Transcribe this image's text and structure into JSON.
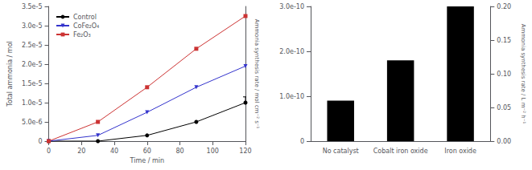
{
  "chart_data": [
    {
      "type": "line",
      "xlabel": "Time / min",
      "ylabel": "Total ammonia / mol",
      "y2label": "Ammonia synthesis rate / mol cm⁻² s⁻¹",
      "xlim": [
        0,
        120
      ],
      "ylim": [
        0,
        3.5e-05
      ],
      "xticks": [
        0,
        20,
        40,
        60,
        80,
        100,
        120
      ],
      "yticks": [
        0,
        {
          "value": 5e-06,
          "label": "5.0e-6"
        },
        {
          "value": 1e-05,
          "label": "1.0e-5"
        },
        {
          "value": 1.5e-05,
          "label": "1.5e-5"
        },
        {
          "value": 2e-05,
          "label": "2.0e-5"
        },
        {
          "value": 2.5e-05,
          "label": "2.5e-5"
        },
        {
          "value": 3e-05,
          "label": "3.0e-5"
        },
        {
          "value": 3.5e-05,
          "label": "3.5e-5"
        }
      ],
      "grid": false,
      "legend": "upper left",
      "series": [
        {
          "name": "Control",
          "color": "black",
          "marker": "circle",
          "x": [
            0,
            30,
            60,
            90,
            120
          ],
          "values": [
            0,
            0.0,
            1.5e-06,
            5e-06,
            1e-05
          ],
          "yerr_upper": [
            null,
            null,
            null,
            null,
            1.5e-06
          ]
        },
        {
          "name": "CoFe₂O₄",
          "color": "#3333cc",
          "marker": "triangle_down",
          "x": [
            0,
            30,
            60,
            90,
            120
          ],
          "values": [
            0,
            1.5e-06,
            7.5e-06,
            1.4e-05,
            1.95e-05
          ]
        },
        {
          "name": "Fe₂O₃",
          "color": "#cc3333",
          "marker": "square",
          "x": [
            0,
            30,
            60,
            90,
            120
          ],
          "values": [
            0,
            5e-06,
            1.4e-05,
            2.4e-05,
            3.25e-05
          ]
        }
      ]
    },
    {
      "type": "bar",
      "categories": [
        "No catalyst",
        "Cobalt iron oxide",
        "Iron oxide"
      ],
      "values": [
        9e-11,
        1.8e-10,
        3e-10
      ],
      "color": "black",
      "ylim": [
        0,
        3e-10
      ],
      "yticks": [
        0,
        {
          "value": 1e-10,
          "label": "1.0e-10"
        },
        {
          "value": 2e-10,
          "label": "2.0e-10"
        },
        {
          "value": 3e-10,
          "label": "3.0e-10"
        }
      ],
      "y2label": "Ammonia synthesis rate / L m⁻² h⁻¹",
      "y2lim": [
        0,
        0.2
      ],
      "y2ticks": [
        {
          "value": 0.0,
          "label": "0.00"
        },
        {
          "value": 0.05,
          "label": "0.05"
        },
        {
          "value": 0.1,
          "label": "0.10"
        },
        {
          "value": 0.15,
          "label": "0.15"
        },
        {
          "value": 0.2,
          "label": "0.20"
        }
      ],
      "grid": false
    }
  ]
}
